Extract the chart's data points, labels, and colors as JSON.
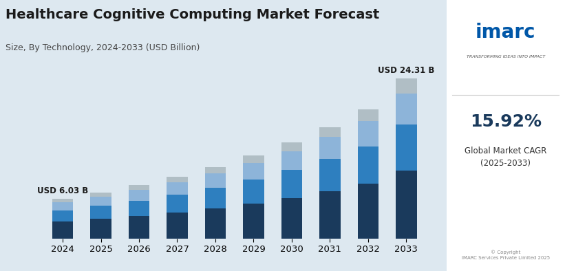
{
  "title": "Healthcare Cognitive Computing Market Forecast",
  "subtitle": "Size, By Technology, 2024-2033 (USD Billion)",
  "years": [
    2024,
    2025,
    2026,
    2027,
    2028,
    2029,
    2030,
    2031,
    2032,
    2033
  ],
  "label_first": "USD 6.03 B",
  "label_last": "USD 24.31 B",
  "total_values": [
    6.03,
    6.98,
    8.09,
    9.38,
    10.88,
    12.62,
    14.62,
    16.95,
    19.65,
    24.31
  ],
  "segments": {
    "Natural Language Processing": [
      2.55,
      2.95,
      3.42,
      3.96,
      4.59,
      5.32,
      6.17,
      7.16,
      8.3,
      10.27
    ],
    "Machine Learning": [
      1.75,
      2.03,
      2.35,
      2.72,
      3.16,
      3.66,
      4.24,
      4.92,
      5.7,
      7.04
    ],
    "Automated Reasoning": [
      1.18,
      1.37,
      1.58,
      1.84,
      2.13,
      2.47,
      2.86,
      3.31,
      3.84,
      4.75
    ],
    "Others": [
      0.55,
      0.63,
      0.74,
      0.86,
      1.0,
      1.17,
      1.35,
      1.56,
      1.81,
      2.25
    ]
  },
  "colors": {
    "Natural Language Processing": "#1a3a5c",
    "Machine Learning": "#2e7fbf",
    "Automated Reasoning": "#8db4d9",
    "Others": "#b0bec5"
  },
  "bg_color": "#dde8f0",
  "bar_width": 0.55,
  "ylim": [
    0,
    28
  ]
}
